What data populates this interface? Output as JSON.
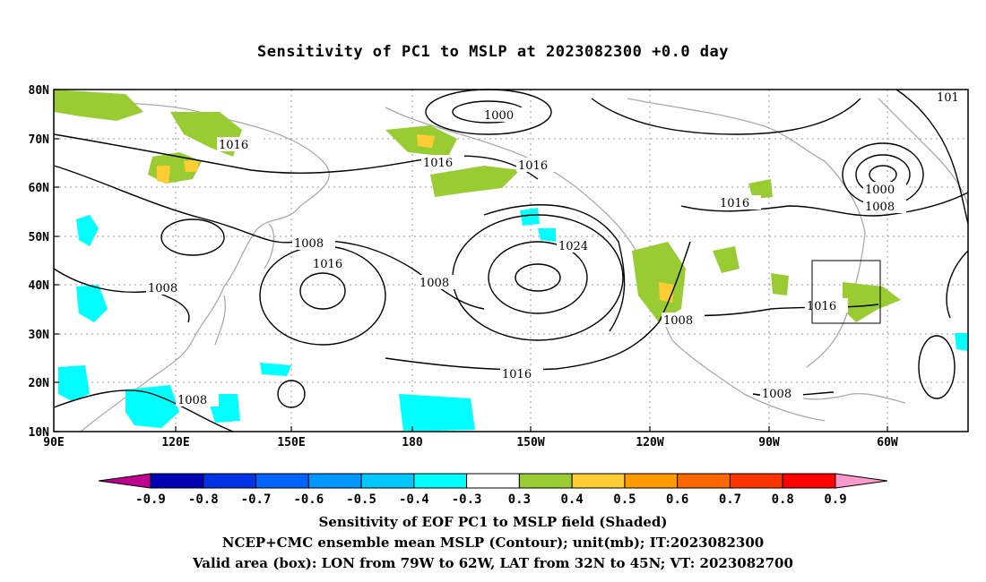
{
  "title": "Sensitivity of PC1 to MSLP at 2023082300 +0.0 day",
  "map": {
    "lat_labels": [
      "80N",
      "70N",
      "60N",
      "50N",
      "40N",
      "30N",
      "20N",
      "10N"
    ],
    "lon_labels": [
      "90E",
      "120E",
      "150E",
      "180",
      "150W",
      "120W",
      "90W",
      "60W"
    ],
    "contour_labels": [
      "1000",
      "1016",
      "1016",
      "1016",
      "101",
      "1000",
      "1008",
      "1016",
      "1008",
      "1016",
      "1008",
      "1024",
      "1008",
      "1008",
      "1016",
      "1016",
      "1008",
      "1008"
    ],
    "box": {
      "lon_range": [
        "79W",
        "62W"
      ],
      "lat_range": [
        "32N",
        "45N"
      ]
    }
  },
  "colorbar": {
    "labels": [
      "-0.9",
      "-0.8",
      "-0.7",
      "-0.6",
      "-0.5",
      "-0.4",
      "-0.3",
      "0.3",
      "0.4",
      "0.5",
      "0.6",
      "0.7",
      "0.8",
      "0.9"
    ],
    "colors": [
      "#c0008f",
      "#0000b4",
      "#0032e6",
      "#0064ff",
      "#0096ff",
      "#00c8ff",
      "#00ffff",
      "#ffffff",
      "#99cc33",
      "#ffcc33",
      "#ff9900",
      "#ff6600",
      "#ff3300",
      "#ff0000",
      "#ff99cc"
    ]
  },
  "captions": {
    "line1": "Sensitivity of EOF PC1 to MSLP field (Shaded)",
    "line2": "NCEP+CMC ensemble mean MSLP (Contour); unit(mb); IT:2023082300",
    "line3": "Valid area (box): LON from 79W to 62W, LAT from 32N to 45N; VT: 2023082700"
  }
}
